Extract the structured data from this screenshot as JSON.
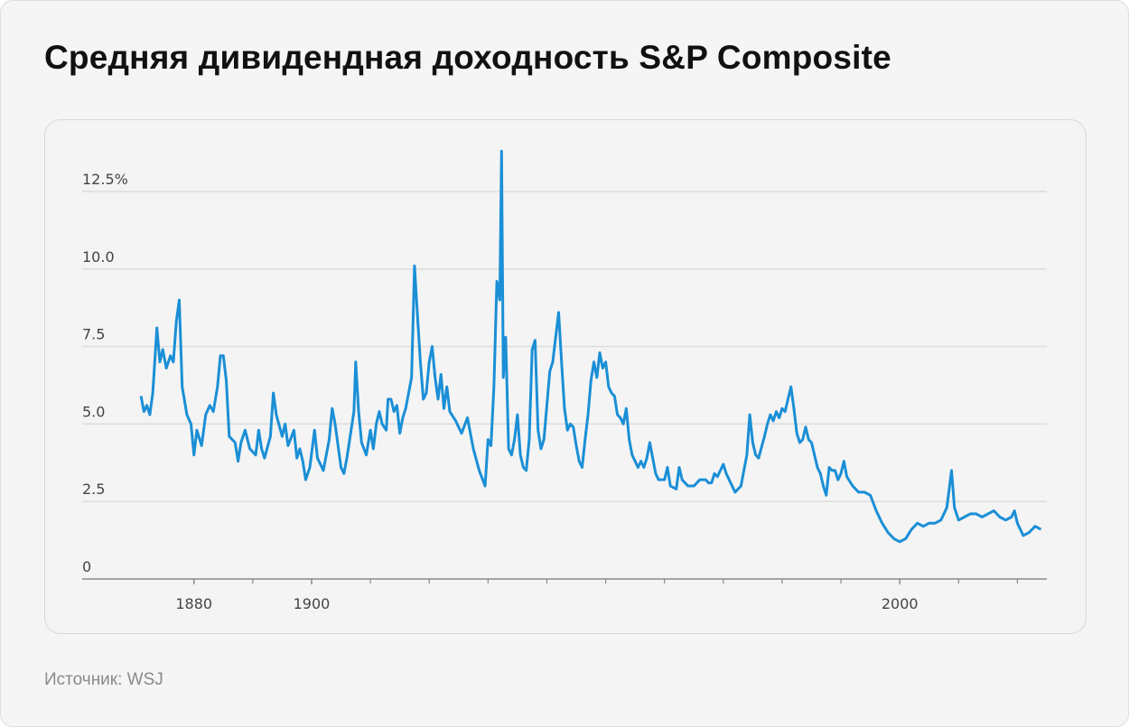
{
  "chart_data": {
    "type": "line",
    "title": "Средняя дивидендная доходность S&P Composite",
    "source": "Источник: WSJ",
    "xlim": [
      1861,
      2025
    ],
    "xticks": [
      1880,
      1900,
      2000
    ],
    "minor_xticks": [
      1890,
      1910,
      1920,
      1930,
      1940,
      1950,
      1960,
      1970,
      1980,
      1990,
      2010,
      2020
    ],
    "ylim": [
      0,
      14.5
    ],
    "yticks": [
      0,
      2.5,
      {
        "value": 5,
        "label": "5.0"
      },
      7.5,
      {
        "value": 10,
        "label": "10.0"
      },
      {
        "value": 12.5,
        "label": "12.5%"
      }
    ],
    "grid": true,
    "series": [
      {
        "color": "#1a8fd6",
        "x": [
          1871.0,
          1871.5,
          1872.0,
          1872.5,
          1873.0,
          1873.7,
          1874.2,
          1874.7,
          1875.3,
          1876.0,
          1876.5,
          1877.0,
          1877.5,
          1878.0,
          1878.8,
          1879.5,
          1880.0,
          1880.5,
          1881.3,
          1882.0,
          1882.7,
          1883.3,
          1884.0,
          1884.5,
          1885.0,
          1885.5,
          1886.0,
          1887.0,
          1887.5,
          1888.0,
          1888.7,
          1889.5,
          1890.5,
          1891.0,
          1891.5,
          1892.0,
          1893.0,
          1893.5,
          1894.0,
          1895.0,
          1895.5,
          1896.0,
          1897.0,
          1897.5,
          1898.0,
          1898.5,
          1899.0,
          1899.7,
          1900.5,
          1901.0,
          1901.5,
          1902.0,
          1903.0,
          1903.5,
          1904.0,
          1905.0,
          1905.5,
          1906.0,
          1907.2,
          1907.5,
          1908.0,
          1908.5,
          1909.3,
          1910.0,
          1910.5,
          1911.0,
          1911.5,
          1912.0,
          1912.7,
          1913.0,
          1913.5,
          1914.0,
          1914.5,
          1915.0,
          1915.5,
          1916.0,
          1917.0,
          1917.5,
          1918.0,
          1918.5,
          1919.0,
          1919.5,
          1920.0,
          1920.5,
          1921.0,
          1921.5,
          1922.0,
          1922.5,
          1923.0,
          1923.5,
          1924.5,
          1925.5,
          1926.5,
          1927.5,
          1928.5,
          1929.5,
          1930.0,
          1930.5,
          1931.0,
          1931.5,
          1932.0,
          1932.3,
          1932.6,
          1933.0,
          1933.5,
          1934.0,
          1934.5,
          1935.0,
          1935.5,
          1936.0,
          1936.5,
          1937.0,
          1937.5,
          1938.0,
          1938.5,
          1939.0,
          1939.5,
          1940.0,
          1940.5,
          1941.0,
          1941.5,
          1942.0,
          1942.5,
          1943.0,
          1943.5,
          1944.0,
          1944.5,
          1945.0,
          1945.5,
          1946.0,
          1946.5,
          1947.0,
          1947.5,
          1948.0,
          1948.5,
          1949.0,
          1949.5,
          1950.0,
          1950.5,
          1951.0,
          1951.5,
          1952.0,
          1952.5,
          1953.0,
          1953.5,
          1954.0,
          1954.5,
          1955.0,
          1955.5,
          1956.0,
          1956.5,
          1957.0,
          1957.5,
          1958.0,
          1958.5,
          1959.0,
          1960.0,
          1960.5,
          1961.0,
          1962.0,
          1962.5,
          1963.0,
          1964.0,
          1965.0,
          1966.0,
          1967.0,
          1967.5,
          1968.0,
          1968.5,
          1969.0,
          1970.0,
          1970.5,
          1971.0,
          1972.0,
          1973.0,
          1974.0,
          1974.5,
          1975.0,
          1975.5,
          1976.0,
          1977.0,
          1977.5,
          1978.0,
          1978.5,
          1979.0,
          1979.5,
          1980.0,
          1980.5,
          1981.0,
          1981.5,
          1982.0,
          1982.5,
          1983.0,
          1983.5,
          1984.0,
          1984.5,
          1985.0,
          1985.5,
          1986.0,
          1986.5,
          1987.0,
          1987.5,
          1988.0,
          1988.5,
          1989.0,
          1989.5,
          1990.0,
          1990.5,
          1991.0,
          1992.0,
          1993.0,
          1994.0,
          1995.0,
          1996.0,
          1997.0,
          1998.0,
          1999.0,
          2000.0,
          2001.0,
          2002.0,
          2003.0,
          2004.0,
          2005.0,
          2006.0,
          2007.0,
          2008.0,
          2008.8,
          2009.3,
          2010.0,
          2011.0,
          2012.0,
          2013.0,
          2014.0,
          2015.0,
          2016.0,
          2017.0,
          2018.0,
          2019.0,
          2019.5,
          2020.0,
          2021.0,
          2022.0,
          2023.0,
          2024.0
        ],
        "values": [
          5.9,
          5.4,
          5.6,
          5.3,
          6.0,
          8.1,
          7.0,
          7.4,
          6.8,
          7.2,
          7.0,
          8.3,
          9.0,
          6.2,
          5.3,
          5.0,
          4.0,
          4.8,
          4.3,
          5.3,
          5.6,
          5.4,
          6.2,
          7.2,
          7.2,
          6.4,
          4.6,
          4.4,
          3.8,
          4.4,
          4.8,
          4.2,
          4.0,
          4.8,
          4.2,
          3.9,
          4.6,
          6.0,
          5.3,
          4.6,
          5.0,
          4.3,
          4.8,
          3.9,
          4.2,
          3.8,
          3.2,
          3.6,
          4.8,
          3.9,
          3.7,
          3.5,
          4.5,
          5.5,
          5.0,
          3.6,
          3.4,
          3.9,
          5.4,
          7.0,
          5.4,
          4.4,
          4.0,
          4.8,
          4.2,
          5.0,
          5.4,
          5.0,
          4.8,
          5.8,
          5.8,
          5.4,
          5.6,
          4.7,
          5.2,
          5.5,
          6.5,
          10.1,
          8.5,
          7.0,
          5.8,
          6.0,
          7.0,
          7.5,
          6.5,
          5.8,
          6.6,
          5.5,
          6.2,
          5.4,
          5.1,
          4.7,
          5.2,
          4.2,
          3.5,
          3.0,
          4.5,
          4.3,
          6.2,
          9.6,
          9.0,
          13.8,
          6.5,
          7.8,
          4.2,
          4.0,
          4.5,
          5.3,
          4.0,
          3.6,
          3.5,
          4.5,
          7.4,
          7.7,
          4.8,
          4.2,
          4.5,
          5.6,
          6.7,
          7.0,
          7.8,
          8.6,
          7.0,
          5.5,
          4.8,
          5.0,
          4.9,
          4.3,
          3.8,
          3.6,
          4.5,
          5.3,
          6.4,
          7.0,
          6.5,
          7.3,
          6.8,
          7.0,
          6.2,
          6.0,
          5.9,
          5.3,
          5.2,
          5.0,
          5.5,
          4.5,
          4.0,
          3.8,
          3.6,
          3.8,
          3.6,
          3.9,
          4.4,
          3.9,
          3.4,
          3.2,
          3.2,
          3.6,
          3.0,
          2.9,
          3.6,
          3.2,
          3.0,
          3.0,
          3.2,
          3.2,
          3.1,
          3.1,
          3.4,
          3.3,
          3.7,
          3.4,
          3.2,
          2.8,
          3.0,
          4.0,
          5.3,
          4.4,
          4.0,
          3.9,
          4.6,
          5.0,
          5.3,
          5.1,
          5.4,
          5.2,
          5.5,
          5.4,
          5.8,
          6.2,
          5.5,
          4.7,
          4.4,
          4.5,
          4.9,
          4.5,
          4.4,
          4.0,
          3.6,
          3.4,
          3.0,
          2.7,
          3.6,
          3.5,
          3.5,
          3.2,
          3.4,
          3.8,
          3.3,
          3.0,
          2.8,
          2.8,
          2.7,
          2.2,
          1.8,
          1.5,
          1.3,
          1.2,
          1.3,
          1.6,
          1.8,
          1.7,
          1.8,
          1.8,
          1.9,
          2.3,
          3.5,
          2.3,
          1.9,
          2.0,
          2.1,
          2.1,
          2.0,
          2.1,
          2.2,
          2.0,
          1.9,
          2.0,
          2.2,
          1.8,
          1.4,
          1.5,
          1.7,
          1.6
        ]
      }
    ]
  }
}
